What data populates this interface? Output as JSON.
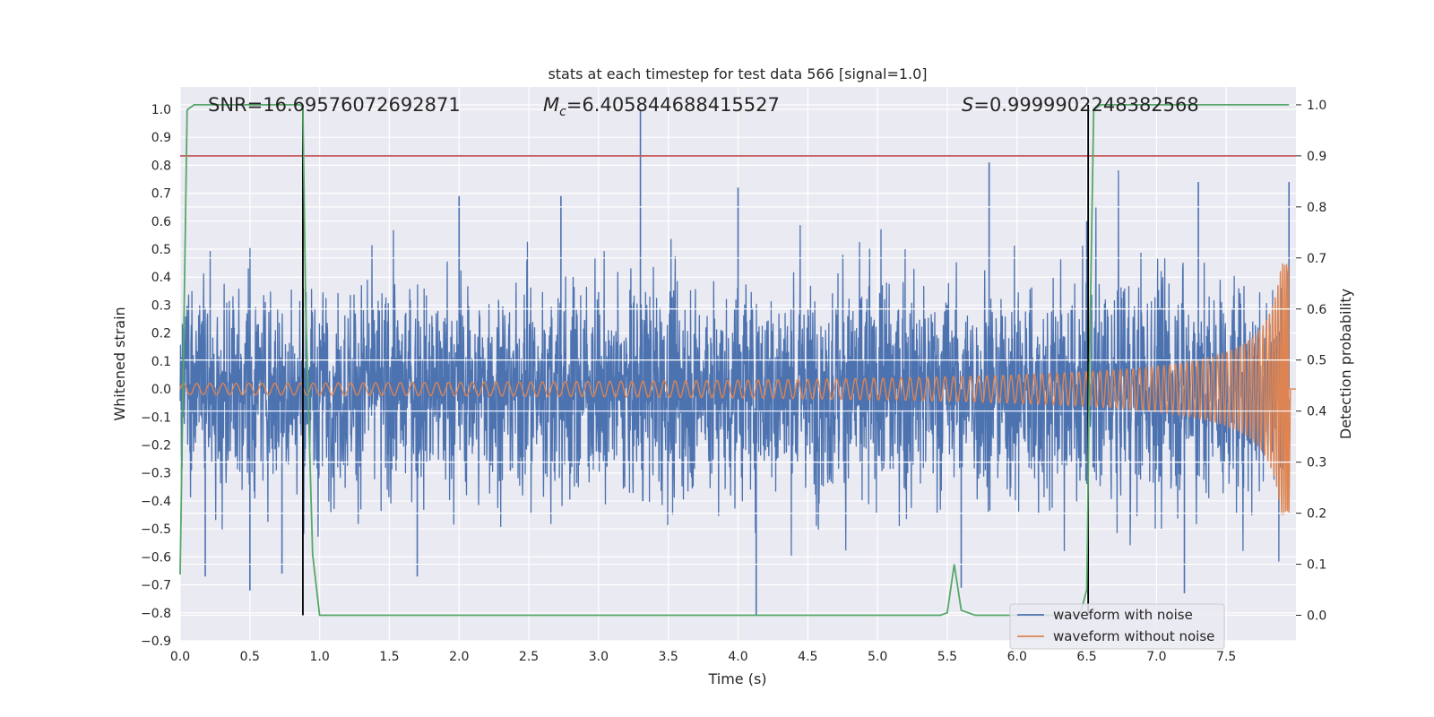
{
  "chart_data": {
    "type": "line",
    "title": "stats at each timestep for test data 566 [signal=1.0]",
    "xlabel": "Time (s)",
    "ylabel_left": "Whitened strain",
    "ylabel_right": "Detection probability",
    "xlim": [
      0.0,
      8.0
    ],
    "ylim_left": [
      -0.9,
      1.08
    ],
    "ylim_right": [
      -0.05,
      1.035
    ],
    "x_ticks": [
      "0.0",
      "0.5",
      "1.0",
      "1.5",
      "2.0",
      "2.5",
      "3.0",
      "3.5",
      "4.0",
      "4.5",
      "5.0",
      "5.5",
      "6.0",
      "6.5",
      "7.0",
      "7.5"
    ],
    "y_ticks_left": [
      "1.0",
      "0.9",
      "0.8",
      "0.7",
      "0.6",
      "0.5",
      "0.4",
      "0.3",
      "0.2",
      "0.1",
      "0.0",
      "−0.1",
      "−0.2",
      "−0.3",
      "−0.4",
      "−0.5",
      "−0.6",
      "−0.7",
      "−0.8",
      "−0.9"
    ],
    "y_ticks_right": [
      "1.0",
      "0.9",
      "0.8",
      "0.7",
      "0.6",
      "0.5",
      "0.4",
      "0.3",
      "0.2",
      "0.1",
      "0.0"
    ],
    "grid": true,
    "legend_position": "bottom-right",
    "annotations": {
      "snr": "SNR=16.69576072692871",
      "mc_symbol": "M",
      "mc_sub": "c",
      "mc_value": "=6.405844688415527",
      "s_symbol": "S",
      "s_value": "=0.9999902248382568"
    },
    "threshold_line": {
      "axis": "right",
      "y": 0.9,
      "color": "#c44e52"
    },
    "vertical_lines": [
      0.88,
      6.51
    ],
    "series": [
      {
        "name": "waveform with noise",
        "axis": "left",
        "color": "#4c72b0",
        "envelope_start": 0.4,
        "envelope_end": 0.45,
        "spikes": [
          {
            "x": 3.3,
            "y": 1.0
          },
          {
            "x": 5.8,
            "y": 0.81
          },
          {
            "x": 4.13,
            "y": -0.81
          },
          {
            "x": 0.5,
            "y": -0.72
          },
          {
            "x": 7.2,
            "y": -0.73
          },
          {
            "x": 2.0,
            "y": 0.69
          },
          {
            "x": 7.95,
            "y": 0.74
          },
          {
            "x": 5.6,
            "y": -0.71
          },
          {
            "x": 0.18,
            "y": -0.67
          },
          {
            "x": 0.73,
            "y": -0.66
          },
          {
            "x": 2.73,
            "y": 0.69
          },
          {
            "x": 4.0,
            "y": 0.72
          },
          {
            "x": 6.5,
            "y": 0.6
          },
          {
            "x": 7.3,
            "y": 0.74
          },
          {
            "x": 1.7,
            "y": -0.67
          }
        ]
      },
      {
        "name": "waveform without noise",
        "axis": "left",
        "color": "#dd8452",
        "amplitude_start": 0.02,
        "amplitude_peak": 0.45,
        "merger_time": 7.95
      },
      {
        "name": "detection probability",
        "axis": "right",
        "color": "#55a868",
        "x": [
          0.0,
          0.05,
          0.1,
          0.85,
          0.88,
          0.9,
          0.95,
          1.0,
          5.45,
          5.5,
          5.55,
          5.6,
          5.65,
          5.7,
          6.45,
          6.5,
          6.52,
          6.55,
          6.6,
          7.95
        ],
        "y": [
          0.08,
          0.99,
          1.0,
          1.0,
          0.998,
          0.6,
          0.12,
          0.0,
          0.0,
          0.005,
          0.1,
          0.01,
          0.005,
          0.0,
          0.0,
          0.05,
          0.5,
          0.99,
          1.0,
          1.0
        ]
      }
    ]
  }
}
